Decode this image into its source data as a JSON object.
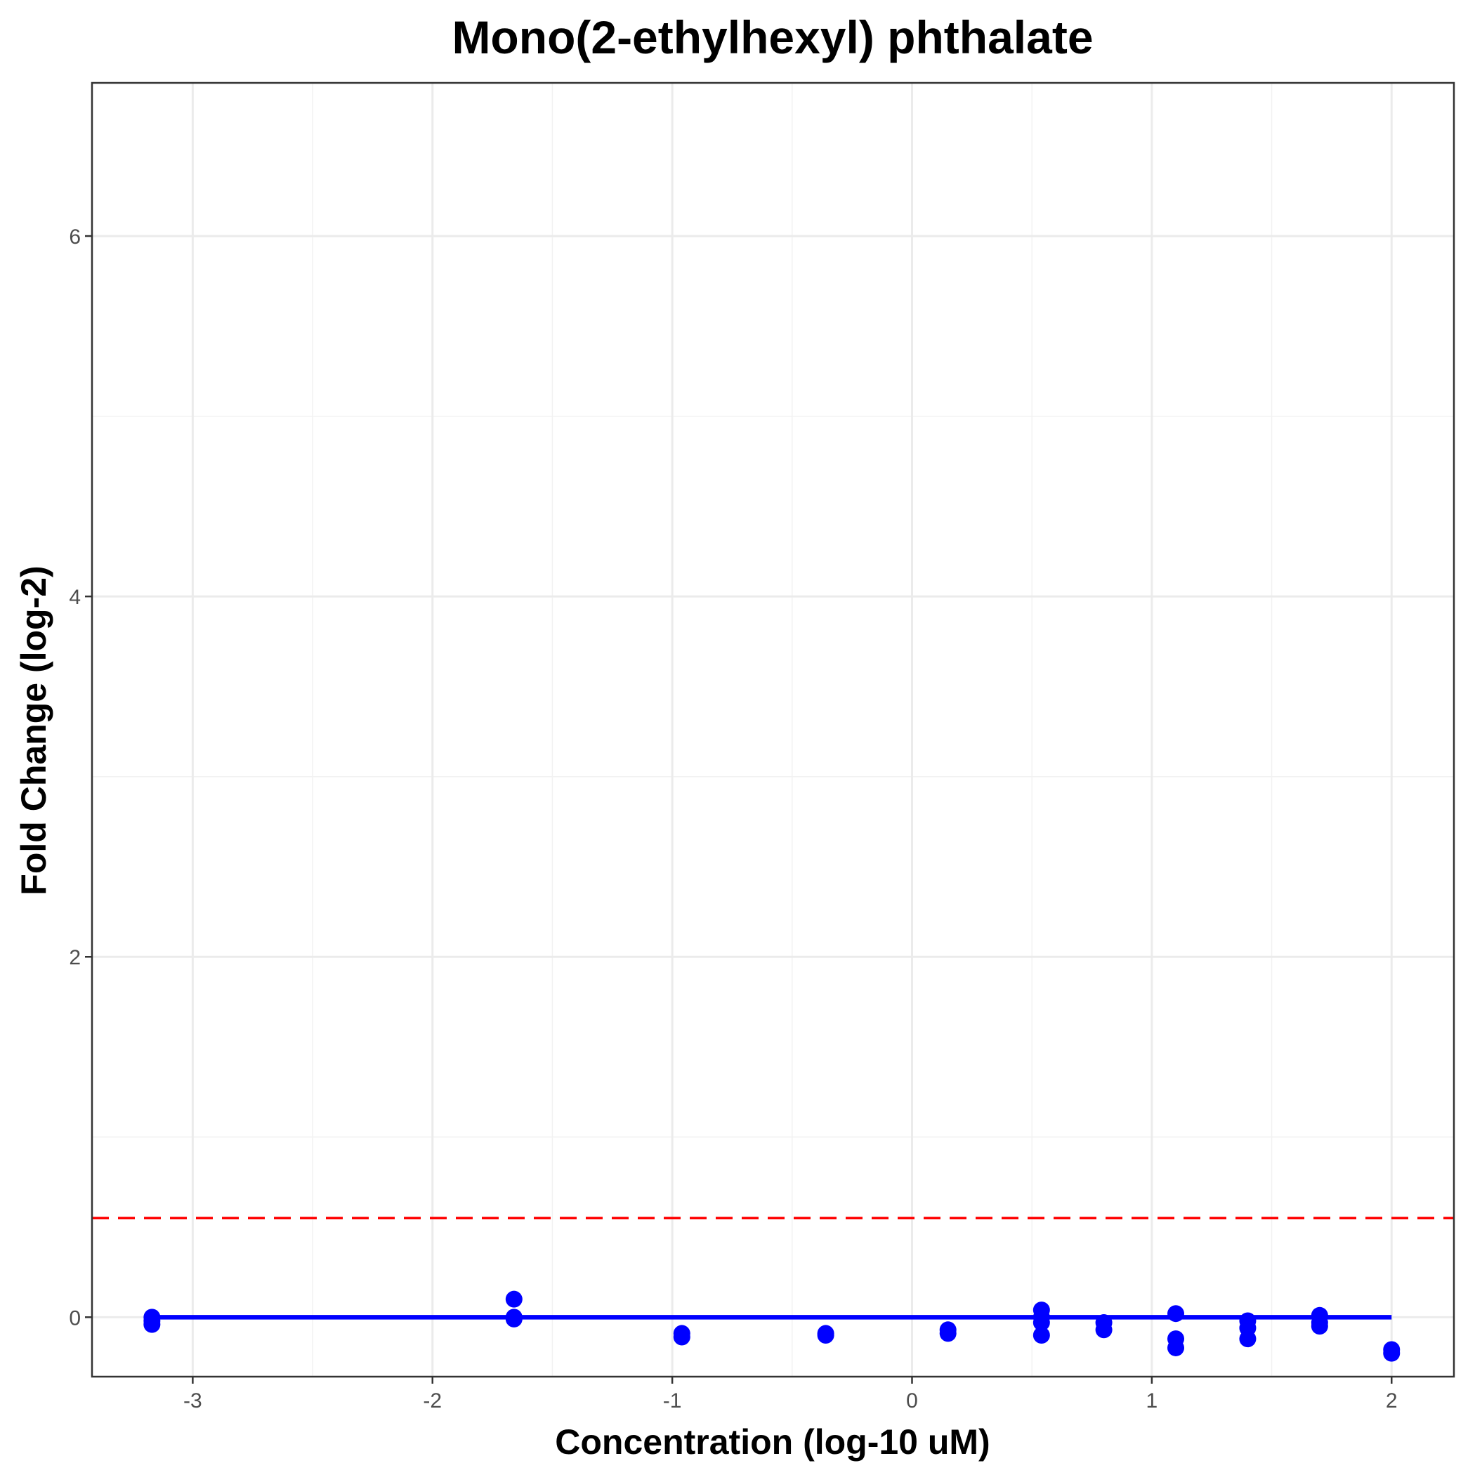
{
  "chart_data": {
    "type": "scatter",
    "title": "Mono(2-ethylhexyl) phthalate",
    "xlabel": "Concentration (log-10 uM)",
    "ylabel": "Fold Change (log-2)",
    "xlim": [
      -3.42,
      2.26
    ],
    "ylim": [
      -0.33,
      6.85
    ],
    "x_ticks": [
      -3,
      -2,
      -1,
      0,
      1,
      2
    ],
    "y_ticks": [
      0,
      2,
      4,
      6
    ],
    "x_tick_labels": [
      "-3",
      "-2",
      "-1",
      "0",
      "1",
      "2"
    ],
    "y_tick_labels": [
      "0",
      "2",
      "4",
      "6"
    ],
    "grid": true,
    "points": {
      "color": "#0000ff",
      "x": [
        -3.17,
        -3.17,
        -3.17,
        -1.66,
        -1.66,
        -1.66,
        -0.96,
        -0.96,
        -0.36,
        -0.36,
        0.15,
        0.15,
        0.54,
        0.54,
        0.54,
        0.54,
        0.8,
        0.8,
        1.1,
        1.1,
        1.1,
        1.4,
        1.4,
        1.4,
        1.7,
        1.7,
        1.7,
        2.0,
        2.0
      ],
      "y": [
        0.0,
        -0.02,
        -0.04,
        0.1,
        0.0,
        -0.01,
        -0.09,
        -0.11,
        -0.09,
        -0.1,
        -0.07,
        -0.09,
        0.04,
        -0.03,
        -0.1,
        0.0,
        -0.03,
        -0.07,
        0.02,
        -0.12,
        -0.17,
        -0.02,
        -0.06,
        -0.12,
        0.01,
        -0.03,
        -0.05,
        -0.18,
        -0.2
      ]
    },
    "fit_line": {
      "color": "#0000ff",
      "x": [
        -3.17,
        2.0
      ],
      "y": [
        0.0,
        0.0
      ]
    },
    "threshold_line": {
      "color": "#ff0000",
      "style": "dashed",
      "y": 0.55
    }
  }
}
